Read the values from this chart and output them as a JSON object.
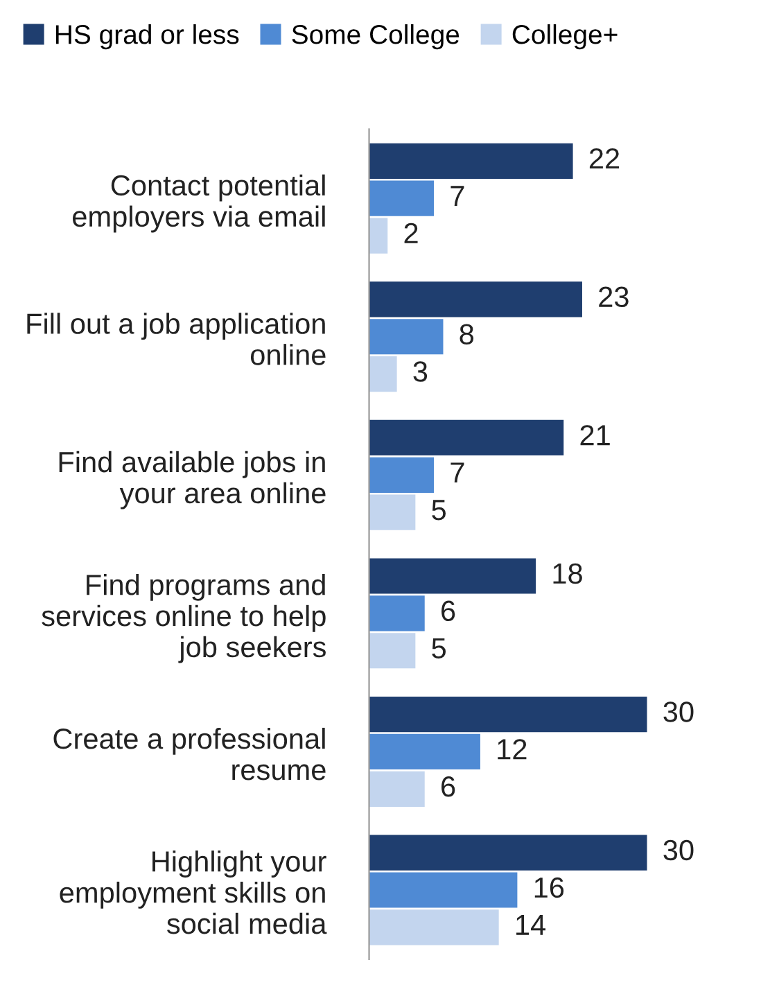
{
  "chart_data": {
    "type": "bar",
    "orientation": "horizontal",
    "data_labels": true,
    "legend": "top left",
    "categories": [
      "Contact potential\nemployers via email",
      "Fill out a job application\nonline",
      "Find available jobs in\nyour area online",
      "Find programs and\nservices online to help\njob seekers",
      "Create a professional\nresume",
      "Highlight your\nemployment skills on\nsocial media"
    ],
    "series": [
      {
        "name": "HS grad or less",
        "color": "#1f3e6f",
        "values": [
          22,
          23,
          21,
          18,
          30,
          30
        ]
      },
      {
        "name": "Some College",
        "color": "#4f8ad4",
        "values": [
          7,
          8,
          7,
          6,
          12,
          16
        ]
      },
      {
        "name": "College+",
        "color": "#c3d5ee",
        "values": [
          2,
          3,
          5,
          5,
          6,
          14
        ]
      }
    ]
  }
}
